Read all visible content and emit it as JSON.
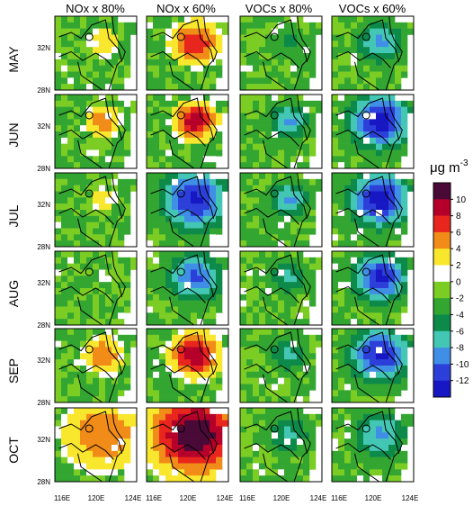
{
  "chart_data": {
    "type": "heatmap",
    "columns": [
      "NOx x 80%",
      "NOx x 60%",
      "VOCs x 80%",
      "VOCs x 60%"
    ],
    "rows": [
      "MAY",
      "JUN",
      "JUL",
      "AUG",
      "SEP",
      "OCT"
    ],
    "y_ticks": [
      "32N",
      "28N"
    ],
    "x_ticks": [
      "116E",
      "120E",
      "124E"
    ],
    "colorbar": {
      "unit": "μg m",
      "unit_exp": "-3",
      "tick_labels": [
        "10",
        "8",
        "6",
        "4",
        "2",
        "0",
        "-2",
        "-4",
        "-6",
        "-8",
        "-10",
        "-12"
      ],
      "bins": [
        {
          "range": [
            10,
            12
          ],
          "color": "#4a0a38"
        },
        {
          "range": [
            8,
            10
          ],
          "color": "#b5002a"
        },
        {
          "range": [
            6,
            8
          ],
          "color": "#e8261e"
        },
        {
          "range": [
            4,
            6
          ],
          "color": "#f28c18"
        },
        {
          "range": [
            2,
            4
          ],
          "color": "#f8e72d"
        },
        {
          "range": [
            0,
            2
          ],
          "color": "#ffffff"
        },
        {
          "range": [
            -2,
            0
          ],
          "color": "#7bcd24"
        },
        {
          "range": [
            -4,
            -2
          ],
          "color": "#33a632"
        },
        {
          "range": [
            -6,
            -4
          ],
          "color": "#0d8a4a"
        },
        {
          "range": [
            -8,
            -6
          ],
          "color": "#43c7b4"
        },
        {
          "range": [
            -10,
            -8
          ],
          "color": "#3f8fe6"
        },
        {
          "range": [
            -12,
            -10
          ],
          "color": "#2c3fd9"
        },
        {
          "range": [
            -14,
            -12
          ],
          "color": "#1717c4"
        }
      ]
    },
    "panels": [
      {
        "row": "MAY",
        "col": "NOx x 80%",
        "center": 4,
        "extent": 0.25
      },
      {
        "row": "MAY",
        "col": "NOx x 60%",
        "center": 8,
        "extent": 0.35
      },
      {
        "row": "MAY",
        "col": "VOCs x 80%",
        "center": -4,
        "extent": 0.3
      },
      {
        "row": "MAY",
        "col": "VOCs x 60%",
        "center": -8,
        "extent": 0.35
      },
      {
        "row": "JUN",
        "col": "NOx x 80%",
        "center": 6,
        "extent": 0.25
      },
      {
        "row": "JUN",
        "col": "NOx x 60%",
        "center": 10,
        "extent": 0.3
      },
      {
        "row": "JUN",
        "col": "VOCs x 80%",
        "center": -8,
        "extent": 0.3
      },
      {
        "row": "JUN",
        "col": "VOCs x 60%",
        "center": -13,
        "extent": 0.45
      },
      {
        "row": "JUL",
        "col": "NOx x 80%",
        "center": 4,
        "extent": 0.2
      },
      {
        "row": "JUL",
        "col": "NOx x 60%",
        "center": -12,
        "extent": 0.5
      },
      {
        "row": "JUL",
        "col": "VOCs x 80%",
        "center": -8,
        "extent": 0.3
      },
      {
        "row": "JUL",
        "col": "VOCs x 60%",
        "center": -13,
        "extent": 0.45
      },
      {
        "row": "AUG",
        "col": "NOx x 80%",
        "center": 2,
        "extent": 0.2
      },
      {
        "row": "AUG",
        "col": "NOx x 60%",
        "center": -10,
        "extent": 0.4
      },
      {
        "row": "AUG",
        "col": "VOCs x 80%",
        "center": -6,
        "extent": 0.3
      },
      {
        "row": "AUG",
        "col": "VOCs x 60%",
        "center": -12,
        "extent": 0.4
      },
      {
        "row": "SEP",
        "col": "NOx x 80%",
        "center": 6,
        "extent": 0.3
      },
      {
        "row": "SEP",
        "col": "NOx x 60%",
        "center": 10,
        "extent": 0.35
      },
      {
        "row": "SEP",
        "col": "VOCs x 80%",
        "center": -6,
        "extent": 0.3
      },
      {
        "row": "SEP",
        "col": "VOCs x 60%",
        "center": -12,
        "extent": 0.45
      },
      {
        "row": "OCT",
        "col": "NOx x 80%",
        "center": 6,
        "extent": 0.6
      },
      {
        "row": "OCT",
        "col": "NOx x 60%",
        "center": 12,
        "extent": 0.65
      },
      {
        "row": "OCT",
        "col": "VOCs x 80%",
        "center": -6,
        "extent": 0.35
      },
      {
        "row": "OCT",
        "col": "VOCs x 60%",
        "center": -8,
        "extent": 0.4
      }
    ]
  }
}
